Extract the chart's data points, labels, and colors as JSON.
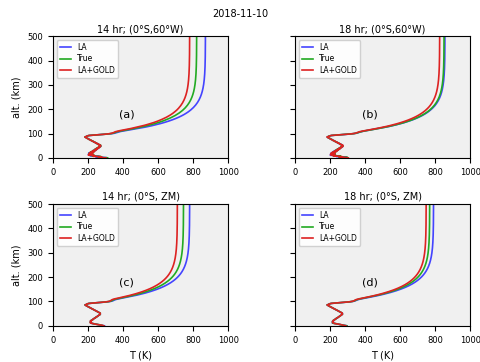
{
  "title_date": "2018-11-10",
  "subplot_titles": [
    "14 hr; (0°S,60°W)",
    "18 hr; (0°S,60°W)",
    "14 hr; (0°S, ZM)",
    "18 hr; (0°S, ZM)"
  ],
  "subplot_labels": [
    "(a)",
    "(b)",
    "(c)",
    "(d)"
  ],
  "legend_labels": [
    "LA",
    "True",
    "LA+GOLD"
  ],
  "line_colors": [
    "#4444ff",
    "#22aa22",
    "#dd2222"
  ],
  "xlabel": "T (K)",
  "ylabel": "alt. (km)",
  "xlim": [
    0,
    1000
  ],
  "ylim": [
    0,
    500
  ],
  "xticks": [
    0,
    200,
    400,
    600,
    800,
    1000
  ],
  "yticks": [
    0,
    100,
    200,
    300,
    400,
    500
  ],
  "background_color": "#f0f0f0"
}
